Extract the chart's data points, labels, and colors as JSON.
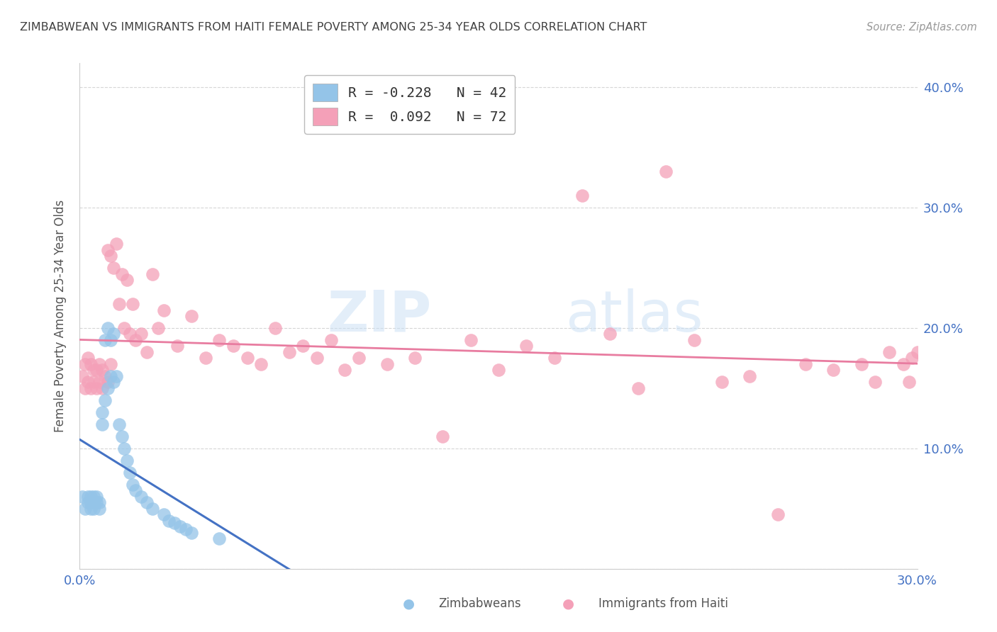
{
  "title": "ZIMBABWEAN VS IMMIGRANTS FROM HAITI FEMALE POVERTY AMONG 25-34 YEAR OLDS CORRELATION CHART",
  "source": "Source: ZipAtlas.com",
  "ylabel": "Female Poverty Among 25-34 Year Olds",
  "xlim": [
    0.0,
    0.3
  ],
  "ylim": [
    0.0,
    0.42
  ],
  "xtick_positions": [
    0.0,
    0.05,
    0.1,
    0.15,
    0.2,
    0.25,
    0.3
  ],
  "xtick_labels": [
    "0.0%",
    "",
    "",
    "",
    "",
    "",
    "30.0%"
  ],
  "ytick_positions": [
    0.0,
    0.1,
    0.2,
    0.3,
    0.4
  ],
  "ytick_labels": [
    "",
    "10.0%",
    "20.0%",
    "30.0%",
    "40.0%"
  ],
  "watermark": "ZIPatlas",
  "zimbabwean_color": "#94c4e8",
  "haiti_color": "#f4a0b8",
  "zimbabwean_line_color": "#4472c4",
  "haiti_line_color": "#e87ca0",
  "background_color": "#ffffff",
  "grid_color": "#cccccc",
  "title_color": "#404040",
  "axis_label_color": "#555555",
  "tick_color": "#4472c4",
  "legend_label1": "R = -0.228   N = 42",
  "legend_label2": "R =  0.092   N = 72",
  "bottom_legend_zim": "Zimbabweans",
  "bottom_legend_haiti": "Immigrants from Haiti",
  "zimbabwean_x": [
    0.001,
    0.002,
    0.003,
    0.003,
    0.004,
    0.004,
    0.004,
    0.005,
    0.005,
    0.005,
    0.006,
    0.006,
    0.007,
    0.007,
    0.008,
    0.008,
    0.009,
    0.009,
    0.01,
    0.01,
    0.011,
    0.011,
    0.012,
    0.012,
    0.013,
    0.014,
    0.015,
    0.016,
    0.017,
    0.018,
    0.019,
    0.02,
    0.022,
    0.024,
    0.026,
    0.03,
    0.032,
    0.034,
    0.036,
    0.038,
    0.04,
    0.05
  ],
  "zimbabwean_y": [
    0.06,
    0.05,
    0.055,
    0.06,
    0.05,
    0.055,
    0.06,
    0.05,
    0.055,
    0.06,
    0.055,
    0.06,
    0.05,
    0.055,
    0.12,
    0.13,
    0.14,
    0.19,
    0.15,
    0.2,
    0.16,
    0.19,
    0.155,
    0.195,
    0.16,
    0.12,
    0.11,
    0.1,
    0.09,
    0.08,
    0.07,
    0.065,
    0.06,
    0.055,
    0.05,
    0.045,
    0.04,
    0.038,
    0.035,
    0.033,
    0.03,
    0.025
  ],
  "haiti_x": [
    0.001,
    0.002,
    0.002,
    0.003,
    0.003,
    0.004,
    0.004,
    0.005,
    0.005,
    0.006,
    0.006,
    0.007,
    0.007,
    0.008,
    0.008,
    0.009,
    0.01,
    0.01,
    0.011,
    0.011,
    0.012,
    0.013,
    0.014,
    0.015,
    0.016,
    0.017,
    0.018,
    0.019,
    0.02,
    0.022,
    0.024,
    0.026,
    0.028,
    0.03,
    0.035,
    0.04,
    0.045,
    0.05,
    0.055,
    0.06,
    0.065,
    0.07,
    0.075,
    0.08,
    0.085,
    0.09,
    0.095,
    0.1,
    0.11,
    0.12,
    0.13,
    0.14,
    0.15,
    0.16,
    0.17,
    0.18,
    0.19,
    0.2,
    0.21,
    0.22,
    0.23,
    0.24,
    0.25,
    0.26,
    0.27,
    0.28,
    0.285,
    0.29,
    0.295,
    0.297,
    0.298,
    0.3
  ],
  "haiti_y": [
    0.16,
    0.15,
    0.17,
    0.155,
    0.175,
    0.15,
    0.17,
    0.155,
    0.165,
    0.15,
    0.165,
    0.155,
    0.17,
    0.15,
    0.165,
    0.16,
    0.155,
    0.265,
    0.17,
    0.26,
    0.25,
    0.27,
    0.22,
    0.245,
    0.2,
    0.24,
    0.195,
    0.22,
    0.19,
    0.195,
    0.18,
    0.245,
    0.2,
    0.215,
    0.185,
    0.21,
    0.175,
    0.19,
    0.185,
    0.175,
    0.17,
    0.2,
    0.18,
    0.185,
    0.175,
    0.19,
    0.165,
    0.175,
    0.17,
    0.175,
    0.11,
    0.19,
    0.165,
    0.185,
    0.175,
    0.31,
    0.195,
    0.15,
    0.33,
    0.19,
    0.155,
    0.16,
    0.045,
    0.17,
    0.165,
    0.17,
    0.155,
    0.18,
    0.17,
    0.155,
    0.175,
    0.18
  ]
}
